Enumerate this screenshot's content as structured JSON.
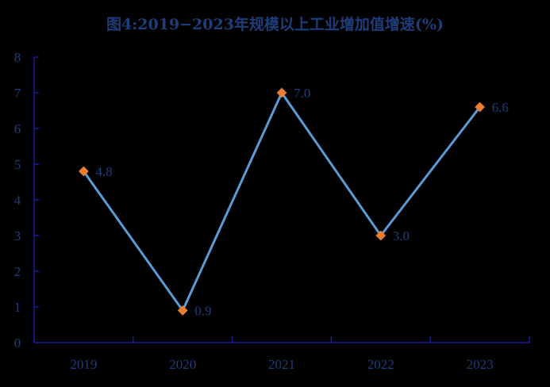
{
  "title": "图4:2019−2023年规模以上工业增加值增速(%)",
  "colors": {
    "background": "#000000",
    "axis": "#1a1a9a",
    "text": "#1f3d7a",
    "line": "#5b9bd5",
    "marker": "#ed7d31"
  },
  "chart_data": {
    "type": "line",
    "title": "图4:2019−2023年规模以上工业增加值增速(%)",
    "xlabel": "",
    "ylabel": "",
    "categories": [
      "2019",
      "2020",
      "2021",
      "2022",
      "2023"
    ],
    "series": [
      {
        "name": "规模以上工业增加值增速",
        "values": [
          4.8,
          0.9,
          7.0,
          3.0,
          6.6
        ]
      }
    ],
    "data_labels": [
      "4.8",
      "0.9",
      "7.0",
      "3.0",
      "6.6"
    ],
    "ylim": [
      0,
      8
    ],
    "yticks": [
      "0",
      "1",
      "2",
      "3",
      "4",
      "5",
      "6",
      "7",
      "8"
    ],
    "grid": false,
    "legend": "none"
  }
}
